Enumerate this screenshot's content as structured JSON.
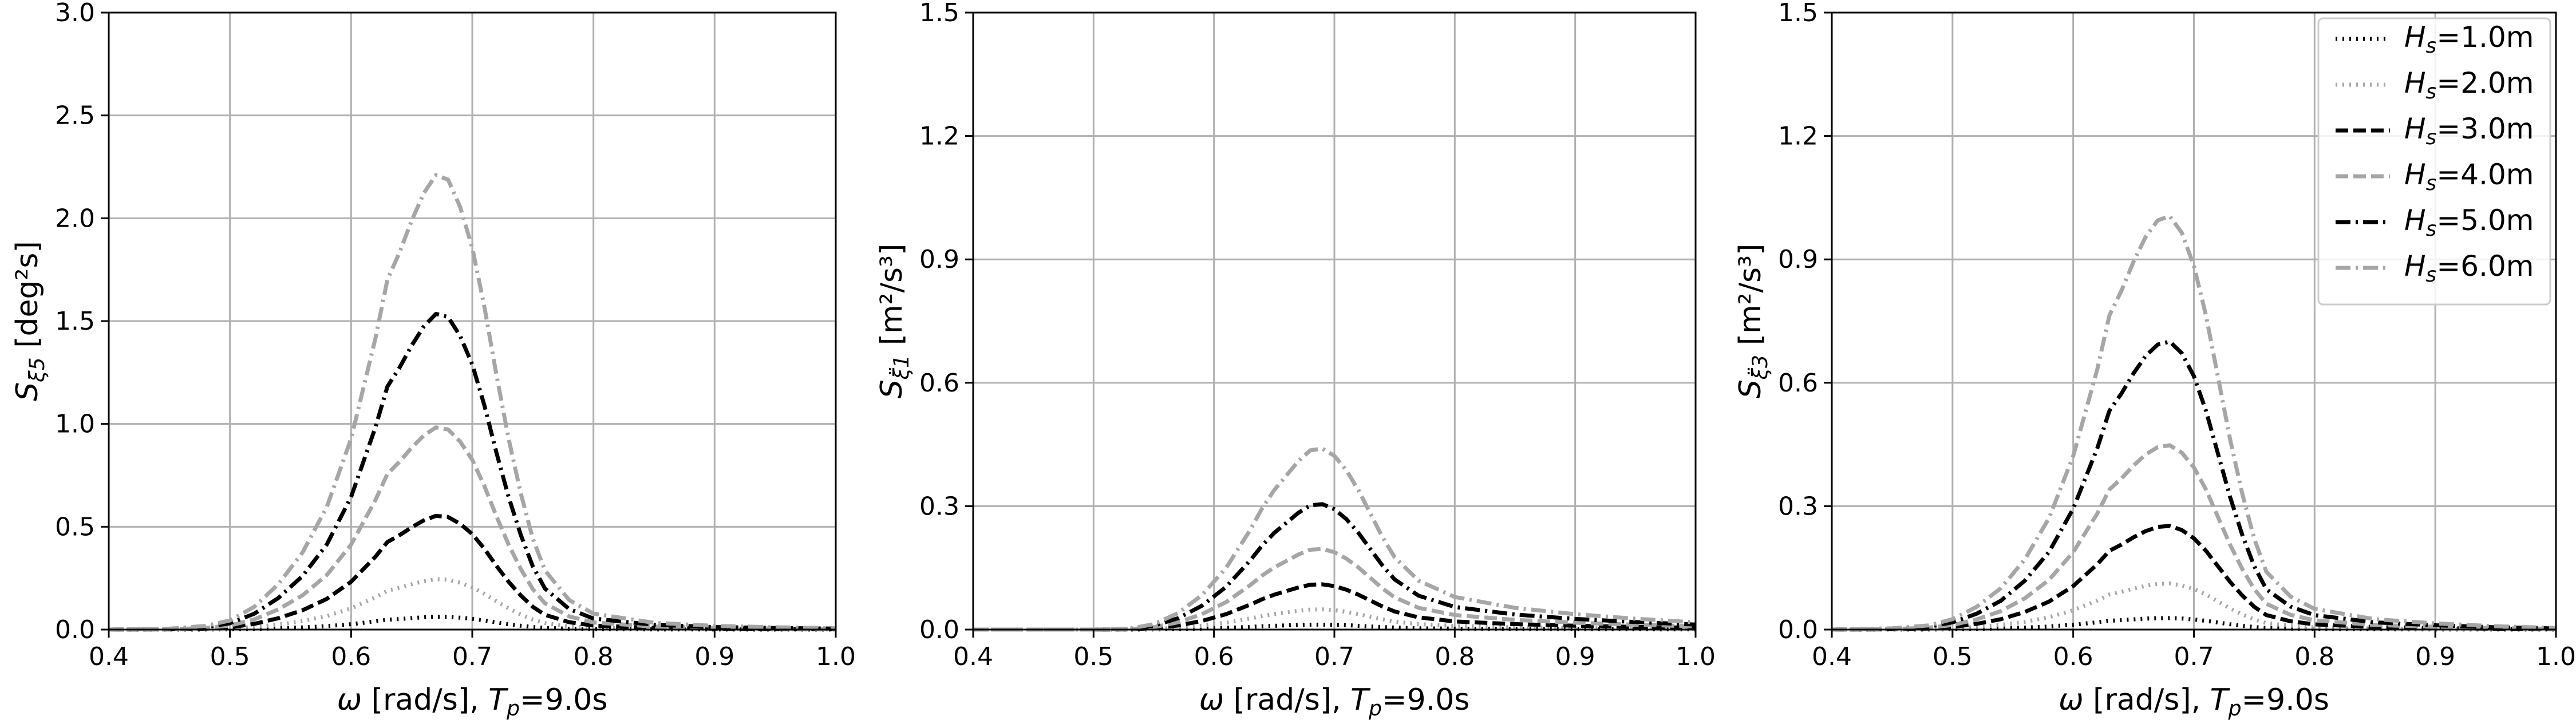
{
  "styles": {
    "black": "#000000",
    "gray": "#a6a6a6",
    "grid": "#b0b0b0"
  },
  "chart_data": [
    {
      "type": "line",
      "xlabel": "ω [rad/s], T_p=9.0s",
      "ylabel": "S_ξ5 [deg²s]",
      "xlim": [
        0.4,
        1.0
      ],
      "ylim": [
        0,
        3.0
      ],
      "xticks": [
        "0.4",
        "0.5",
        "0.6",
        "0.7",
        "0.8",
        "0.9",
        "1.0"
      ],
      "yticks": [
        "0.0",
        "0.5",
        "1.0",
        "1.5",
        "2.0",
        "2.5",
        "3.0"
      ],
      "grid": true,
      "series": [
        {
          "name": "H_s=1.0m",
          "style": "dotted",
          "color": "#000000",
          "peak": 0.062
        },
        {
          "name": "H_s=2.0m",
          "style": "dotted",
          "color": "#a6a6a6",
          "peak": 0.245
        },
        {
          "name": "H_s=3.0m",
          "style": "dashed",
          "color": "#000000",
          "peak": 0.553
        },
        {
          "name": "H_s=4.0m",
          "style": "dashed",
          "color": "#a6a6a6",
          "peak": 0.983
        },
        {
          "name": "H_s=5.0m",
          "style": "dashdot",
          "color": "#000000",
          "peak": 1.535
        },
        {
          "name": "H_s=6.0m",
          "style": "dashdot",
          "color": "#a6a6a6",
          "peak": 2.21
        }
      ],
      "shape": {
        "x": [
          0.4,
          0.45,
          0.48,
          0.5,
          0.52,
          0.54,
          0.56,
          0.58,
          0.6,
          0.62,
          0.63,
          0.64,
          0.65,
          0.66,
          0.67,
          0.68,
          0.69,
          0.7,
          0.71,
          0.72,
          0.73,
          0.74,
          0.75,
          0.76,
          0.78,
          0.8,
          0.85,
          0.9,
          0.95,
          1.0
        ],
        "y": [
          0,
          0.002,
          0.008,
          0.02,
          0.05,
          0.1,
          0.17,
          0.27,
          0.42,
          0.64,
          0.77,
          0.83,
          0.9,
          0.96,
          1.0,
          0.99,
          0.93,
          0.84,
          0.71,
          0.56,
          0.42,
          0.3,
          0.2,
          0.13,
          0.065,
          0.035,
          0.015,
          0.008,
          0.005,
          0.003
        ]
      }
    },
    {
      "type": "line",
      "xlabel": "ω [rad/s], T_p=9.0s",
      "ylabel": "S_ξ̈1 [m²/s³]",
      "xlim": [
        0.4,
        1.0
      ],
      "ylim": [
        0,
        1.5
      ],
      "xticks": [
        "0.4",
        "0.5",
        "0.6",
        "0.7",
        "0.8",
        "0.9",
        "1.0"
      ],
      "yticks": [
        "0.0",
        "0.3",
        "0.6",
        "0.9",
        "1.2",
        "1.5"
      ],
      "grid": true,
      "series": [
        {
          "name": "H_s=1.0m",
          "style": "dotted",
          "color": "#000000",
          "peak": 0.012
        },
        {
          "name": "H_s=2.0m",
          "style": "dotted",
          "color": "#a6a6a6",
          "peak": 0.049
        },
        {
          "name": "H_s=3.0m",
          "style": "dashed",
          "color": "#000000",
          "peak": 0.11
        },
        {
          "name": "H_s=4.0m",
          "style": "dashed",
          "color": "#a6a6a6",
          "peak": 0.196
        },
        {
          "name": "H_s=5.0m",
          "style": "dashdot",
          "color": "#000000",
          "peak": 0.305
        },
        {
          "name": "H_s=6.0m",
          "style": "dashdot",
          "color": "#a6a6a6",
          "peak": 0.44
        }
      ],
      "shape": {
        "x": [
          0.4,
          0.5,
          0.53,
          0.55,
          0.57,
          0.59,
          0.61,
          0.63,
          0.64,
          0.65,
          0.66,
          0.67,
          0.68,
          0.69,
          0.7,
          0.71,
          0.72,
          0.73,
          0.74,
          0.75,
          0.77,
          0.8,
          0.85,
          0.9,
          0.95,
          1.0
        ],
        "y": [
          0,
          0,
          0.005,
          0.03,
          0.09,
          0.19,
          0.34,
          0.55,
          0.67,
          0.77,
          0.85,
          0.93,
          0.99,
          1.0,
          0.96,
          0.88,
          0.77,
          0.64,
          0.51,
          0.4,
          0.27,
          0.18,
          0.12,
          0.085,
          0.06,
          0.04
        ]
      }
    },
    {
      "type": "line",
      "xlabel": "ω [rad/s], T_p=9.0s",
      "ylabel": "S_ξ̈3 [m²/s³]",
      "xlim": [
        0.4,
        1.0
      ],
      "ylim": [
        0,
        1.5
      ],
      "xticks": [
        "0.4",
        "0.5",
        "0.6",
        "0.7",
        "0.8",
        "0.9",
        "1.0"
      ],
      "yticks": [
        "0.0",
        "0.3",
        "0.6",
        "0.9",
        "1.2",
        "1.5"
      ],
      "grid": true,
      "legend": "top-right",
      "series": [
        {
          "name": "H_s=1.0m",
          "style": "dotted",
          "color": "#000000",
          "peak": 0.028
        },
        {
          "name": "H_s=2.0m",
          "style": "dotted",
          "color": "#a6a6a6",
          "peak": 0.112
        },
        {
          "name": "H_s=3.0m",
          "style": "dashed",
          "color": "#000000",
          "peak": 0.252
        },
        {
          "name": "H_s=4.0m",
          "style": "dashed",
          "color": "#a6a6a6",
          "peak": 0.448
        },
        {
          "name": "H_s=5.0m",
          "style": "dashdot",
          "color": "#000000",
          "peak": 0.7
        },
        {
          "name": "H_s=6.0m",
          "style": "dashdot",
          "color": "#a6a6a6",
          "peak": 1.005
        }
      ],
      "shape": {
        "x": [
          0.4,
          0.45,
          0.48,
          0.5,
          0.52,
          0.54,
          0.56,
          0.58,
          0.6,
          0.62,
          0.63,
          0.64,
          0.65,
          0.66,
          0.67,
          0.68,
          0.69,
          0.7,
          0.71,
          0.72,
          0.73,
          0.74,
          0.75,
          0.76,
          0.78,
          0.8,
          0.85,
          0.9,
          0.95,
          1.0
        ],
        "y": [
          0,
          0.003,
          0.01,
          0.025,
          0.055,
          0.1,
          0.17,
          0.27,
          0.42,
          0.63,
          0.76,
          0.82,
          0.89,
          0.95,
          0.99,
          1.0,
          0.96,
          0.88,
          0.76,
          0.61,
          0.46,
          0.33,
          0.22,
          0.14,
          0.08,
          0.05,
          0.025,
          0.015,
          0.008,
          0.004
        ]
      }
    }
  ]
}
